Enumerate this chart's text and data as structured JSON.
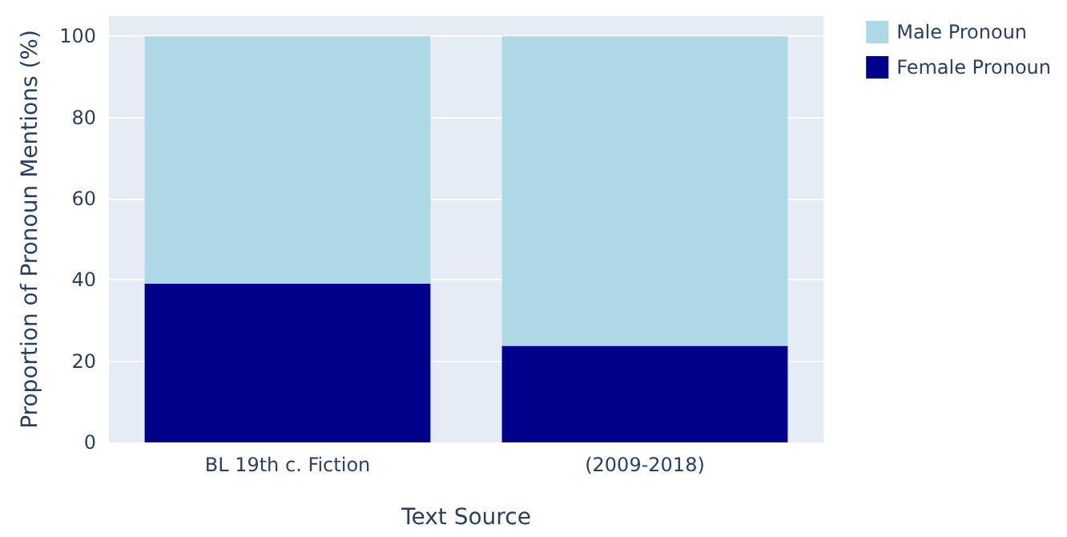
{
  "chart_data": {
    "type": "bar",
    "stacked": true,
    "xlabel": "Text Source",
    "ylabel": "Proportion of Pronoun Mentions (%)",
    "categories": [
      "BL 19th c. Fiction",
      "(2009-2018)"
    ],
    "series": [
      {
        "name": "Female Pronoun",
        "color": "#00008b",
        "values": [
          39.1,
          23.8
        ]
      },
      {
        "name": "Male Pronoun",
        "color": "#add8e6",
        "values": [
          60.9,
          76.2
        ]
      }
    ],
    "ylim": [
      0,
      105
    ],
    "yticks": [
      0,
      20,
      40,
      60,
      80,
      100
    ],
    "grid": "y",
    "legend": "top right"
  }
}
